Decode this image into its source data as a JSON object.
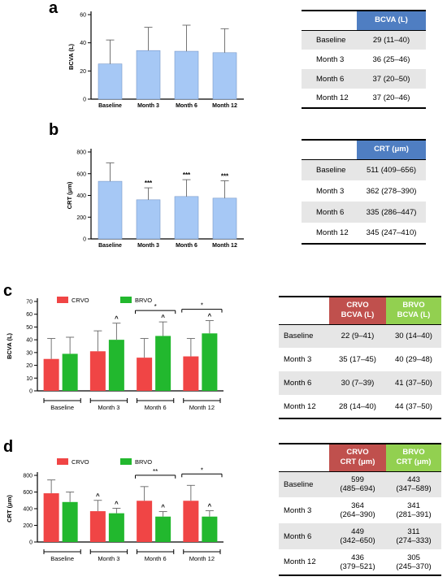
{
  "panels": {
    "a": {
      "letter": "a",
      "table": {
        "headers": [
          "BCVA (L)"
        ],
        "header_color": "#4f7ec2",
        "rows": [
          {
            "label": "Baseline",
            "values": [
              "29 (11–40)"
            ]
          },
          {
            "label": "Month 3",
            "values": [
              "36 (25–46)"
            ]
          },
          {
            "label": "Month 6",
            "values": [
              "37 (20–50)"
            ]
          },
          {
            "label": "Month 12",
            "values": [
              "37 (20–46)"
            ]
          }
        ]
      }
    },
    "b": {
      "letter": "b",
      "table": {
        "headers": [
          "CRT (μm)"
        ],
        "header_color": "#4f7ec2",
        "rows": [
          {
            "label": "Baseline",
            "values": [
              "511 (409–656)"
            ]
          },
          {
            "label": "Month 3",
            "values": [
              "362 (278–390)"
            ]
          },
          {
            "label": "Month 6",
            "values": [
              "335 (286–447)"
            ]
          },
          {
            "label": "Month 12",
            "values": [
              "345 (247–410)"
            ]
          }
        ]
      }
    },
    "c": {
      "letter": "c",
      "table": {
        "headers": [
          [
            "CRVO",
            "BCVA (L)"
          ],
          [
            "BRVO",
            "BCVA (L)"
          ]
        ],
        "header_colors": [
          "#c0504d",
          "#92d050"
        ],
        "rows": [
          {
            "label": "Baseline",
            "values": [
              "22 (9–41)",
              "30 (14–40)"
            ]
          },
          {
            "label": "Month 3",
            "values": [
              "35 (17–45)",
              "40 (29–48)"
            ]
          },
          {
            "label": "Month 6",
            "values": [
              "30 (7–39)",
              "41 (37–50)"
            ]
          },
          {
            "label": "Month 12",
            "values": [
              "28 (14–40)",
              "44 (37–50)"
            ]
          }
        ]
      }
    },
    "d": {
      "letter": "d",
      "table": {
        "headers": [
          [
            "CRVO",
            "CRT (μm)"
          ],
          [
            "BRVO",
            "CRT (μm)"
          ]
        ],
        "header_colors": [
          "#c0504d",
          "#92d050"
        ],
        "rows": [
          {
            "label": "Baseline",
            "values": [
              [
                "599",
                "(485–694)"
              ],
              [
                "443",
                "(347–589)"
              ]
            ]
          },
          {
            "label": "Month 3",
            "values": [
              [
                "364",
                "(264–390)"
              ],
              [
                "341",
                "(281–391)"
              ]
            ]
          },
          {
            "label": "Month 6",
            "values": [
              [
                "449",
                "(342–650)"
              ],
              [
                "311",
                "(274–333)"
              ]
            ]
          },
          {
            "label": "Month 12",
            "values": [
              [
                "436",
                "(379–521)"
              ],
              [
                "305",
                "(245–370)"
              ]
            ]
          }
        ]
      }
    }
  },
  "chart_data": [
    {
      "id": "a",
      "type": "bar",
      "categories": [
        "Baseline",
        "Month 3",
        "Month 6",
        "Month 12"
      ],
      "series": [
        {
          "values": [
            25,
            34.5,
            34,
            33
          ],
          "error_upper": [
            42,
            51,
            52.5,
            50
          ],
          "color": "#a6c8f5"
        }
      ],
      "ylabel": "BCVA (L)",
      "ylim": [
        0,
        60
      ],
      "yticks": [
        0,
        20,
        40,
        60
      ],
      "annotations": [
        "",
        "",
        "",
        ""
      ]
    },
    {
      "id": "b",
      "type": "bar",
      "categories": [
        "Baseline",
        "Month 3",
        "Month 6",
        "Month 12"
      ],
      "series": [
        {
          "values": [
            530,
            360,
            390,
            375
          ],
          "error_upper": [
            700,
            470,
            545,
            535
          ],
          "color": "#a6c8f5"
        }
      ],
      "ylabel": "CRT (μm)",
      "ylim": [
        0,
        800
      ],
      "yticks": [
        0,
        200,
        400,
        600,
        800
      ],
      "annotations": [
        "",
        "***",
        "***",
        "***"
      ]
    },
    {
      "id": "c",
      "type": "bar",
      "categories": [
        "Baseline",
        "Month 3",
        "Month 6",
        "Month 12"
      ],
      "series": [
        {
          "name": "CRVO",
          "values": [
            25,
            31,
            26,
            27
          ],
          "error_upper": [
            41,
            47,
            41,
            41
          ],
          "color": "#f04545"
        },
        {
          "name": "BRVO",
          "values": [
            29,
            40,
            43,
            45
          ],
          "error_upper": [
            42,
            53,
            54,
            55
          ],
          "color": "#22b82e"
        }
      ],
      "ylabel": "BCVA (L)",
      "ylim": [
        0,
        70
      ],
      "yticks": [
        0,
        10,
        20,
        30,
        40,
        50,
        60,
        70
      ],
      "annotations": [
        [
          "",
          ""
        ],
        [
          "",
          "^"
        ],
        [
          "",
          "^"
        ],
        [
          "",
          "^"
        ]
      ],
      "brackets": [
        {
          "category": 2,
          "label": "*"
        },
        {
          "category": 3,
          "label": "*"
        }
      ]
    },
    {
      "id": "d",
      "type": "bar",
      "categories": [
        "Baseline",
        "Month 3",
        "Month 6",
        "Month 12"
      ],
      "series": [
        {
          "name": "CRVO",
          "values": [
            585,
            370,
            495,
            495
          ],
          "error_upper": [
            745,
            500,
            665,
            680
          ],
          "color": "#f04545"
        },
        {
          "name": "BRVO",
          "values": [
            480,
            345,
            305,
            305
          ],
          "error_upper": [
            600,
            405,
            365,
            375
          ],
          "color": "#22b82e"
        }
      ],
      "ylabel": "CRT (μm)",
      "ylim": [
        0,
        800
      ],
      "yticks": [
        0,
        200,
        400,
        600,
        800
      ],
      "annotations": [
        [
          "",
          ""
        ],
        [
          "^",
          "^"
        ],
        [
          "",
          "^"
        ],
        [
          "",
          "^"
        ]
      ],
      "brackets": [
        {
          "category": 2,
          "label": "**"
        },
        {
          "category": 3,
          "label": "*"
        }
      ]
    }
  ]
}
